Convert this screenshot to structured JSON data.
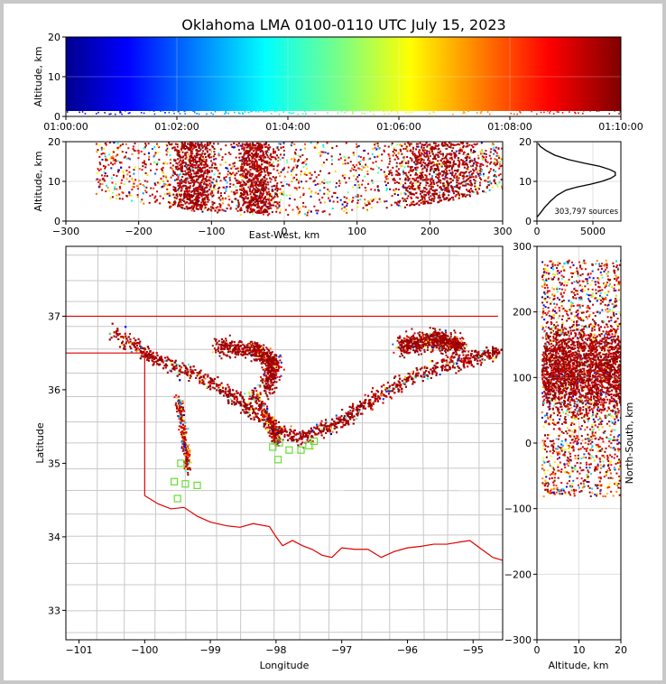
{
  "title": "Oklahoma LMA 0100-0110 UTC July 15, 2023",
  "chart_data": [
    {
      "name": "time-height",
      "type": "scatter",
      "xlabel": "",
      "ylabel": "Altitude, km",
      "xlim": [
        "01:00:00",
        "01:10:00"
      ],
      "ylim": [
        0,
        20
      ],
      "xticks": [
        "01:00:00",
        "01:02:00",
        "01:04:00",
        "01:06:00",
        "01:08:00",
        "01:10:00"
      ],
      "yticks": [
        0,
        10,
        20
      ],
      "colormap": "jet, colored by time",
      "grid": true
    },
    {
      "name": "east-west-height",
      "type": "scatter",
      "xlabel": "East-West, km",
      "ylabel": "Altitude, km",
      "xlim": [
        -300,
        300
      ],
      "ylim": [
        0,
        20
      ],
      "xticks": [
        -300,
        -200,
        -100,
        0,
        100,
        200,
        300
      ],
      "yticks": [
        0,
        10,
        20
      ],
      "clusters_x_km": [
        [
          -170,
          -80
        ],
        [
          -80,
          0
        ],
        [
          120,
          300
        ]
      ],
      "grid": true
    },
    {
      "name": "altitude-histogram",
      "type": "line",
      "annotation": "303,797 sources",
      "xlim": [
        0,
        7500
      ],
      "ylim": [
        0,
        20
      ],
      "xticks": [
        0,
        5000
      ],
      "yticks": [
        0,
        10,
        20
      ],
      "x": [
        0,
        300,
        700,
        1200,
        1800,
        2600,
        3600,
        4800,
        5800,
        6600,
        7000,
        7000,
        6500,
        5600,
        4200,
        2800,
        1600,
        800,
        300,
        100
      ],
      "y": [
        1.0,
        2.0,
        3.5,
        5.0,
        6.5,
        7.8,
        8.6,
        9.3,
        10.0,
        10.8,
        11.5,
        12.3,
        13.0,
        13.8,
        14.6,
        15.5,
        16.6,
        17.8,
        18.8,
        19.6
      ]
    },
    {
      "name": "plan-view",
      "type": "scatter",
      "xlabel": "Longitude",
      "ylabel": "Latitude",
      "xlim": [
        -101.2,
        -94.55
      ],
      "ylim": [
        32.6,
        37.95
      ],
      "xticks": [
        -101,
        -100,
        -99,
        -98,
        -97,
        -96,
        -95
      ],
      "yticks": [
        33,
        34,
        35,
        36,
        37
      ],
      "state_border_color": "#e00000",
      "county_line_color": "#c8c8c8",
      "station_color": "#66dd33",
      "stations": [
        [
          -99.45,
          35.0
        ],
        [
          -99.38,
          34.72
        ],
        [
          -99.2,
          34.7
        ],
        [
          -99.55,
          34.75
        ],
        [
          -99.5,
          34.52
        ],
        [
          -98.05,
          35.22
        ],
        [
          -97.95,
          35.28
        ],
        [
          -97.8,
          35.18
        ],
        [
          -97.62,
          35.18
        ],
        [
          -97.5,
          35.24
        ],
        [
          -97.42,
          35.3
        ],
        [
          -97.97,
          35.05
        ]
      ],
      "grid": false
    },
    {
      "name": "north-south-height",
      "type": "scatter",
      "xlabel": "Altitude, km",
      "ylabel": "North-South, km",
      "xlim": [
        0,
        20
      ],
      "ylim": [
        -300,
        300
      ],
      "xticks": [
        0,
        10,
        20
      ],
      "yticks": [
        -300,
        -200,
        -100,
        0,
        100,
        200,
        300
      ],
      "grid": true
    }
  ]
}
